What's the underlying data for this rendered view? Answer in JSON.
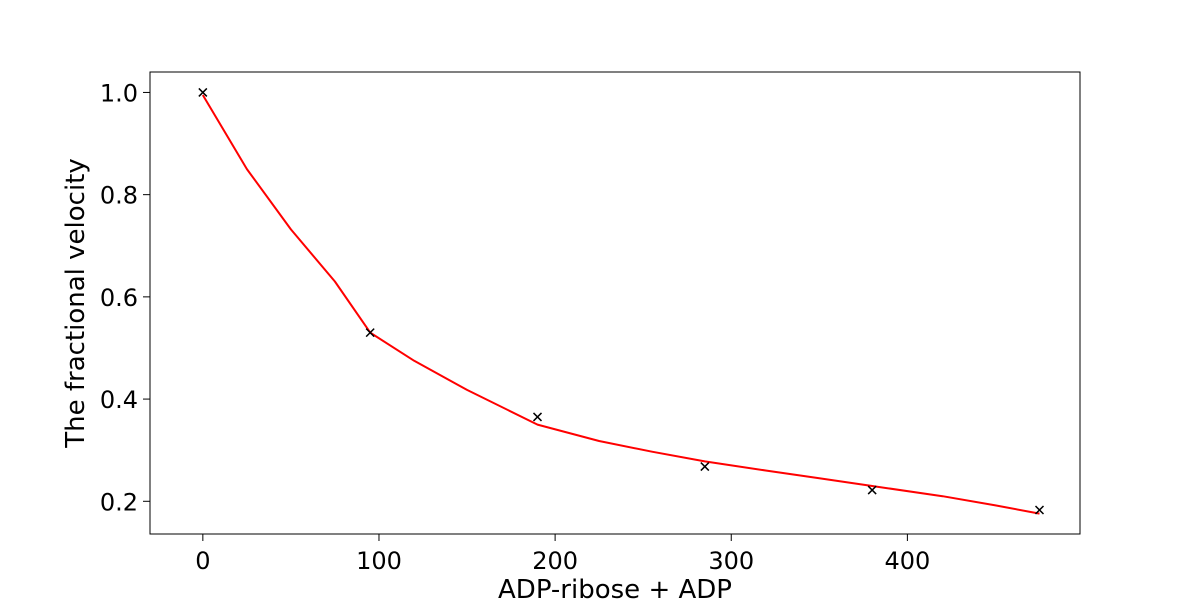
{
  "chart_data": {
    "type": "scatter",
    "title": "",
    "xlabel": "ADP-ribose + ADP",
    "ylabel": "The fractional velocity",
    "xlim": [
      -30,
      498
    ],
    "ylim": [
      0.136,
      1.04
    ],
    "xticks": [
      0,
      100,
      200,
      300,
      400
    ],
    "yticks": [
      0.2,
      0.4,
      0.6,
      0.8,
      1.0
    ],
    "xtick_labels": [
      "0",
      "100",
      "200",
      "300",
      "400"
    ],
    "ytick_labels": [
      "0.2",
      "0.4",
      "0.6",
      "0.8",
      "1.0"
    ],
    "grid": false,
    "legend": "none",
    "series": [
      {
        "kind": "points",
        "marker": "x",
        "color": "#000000",
        "x": [
          0,
          95,
          190,
          285,
          380,
          475
        ],
        "y": [
          1.0,
          0.53,
          0.365,
          0.268,
          0.222,
          0.183
        ]
      },
      {
        "kind": "line",
        "color": "#ff0000",
        "x": [
          0,
          25,
          50,
          75,
          95,
          120,
          150,
          190,
          225,
          255,
          285,
          320,
          350,
          380,
          420,
          450,
          475
        ],
        "y": [
          0.995,
          0.85,
          0.732,
          0.63,
          0.53,
          0.475,
          0.418,
          0.35,
          0.318,
          0.297,
          0.278,
          0.26,
          0.245,
          0.23,
          0.21,
          0.192,
          0.176
        ]
      }
    ]
  }
}
